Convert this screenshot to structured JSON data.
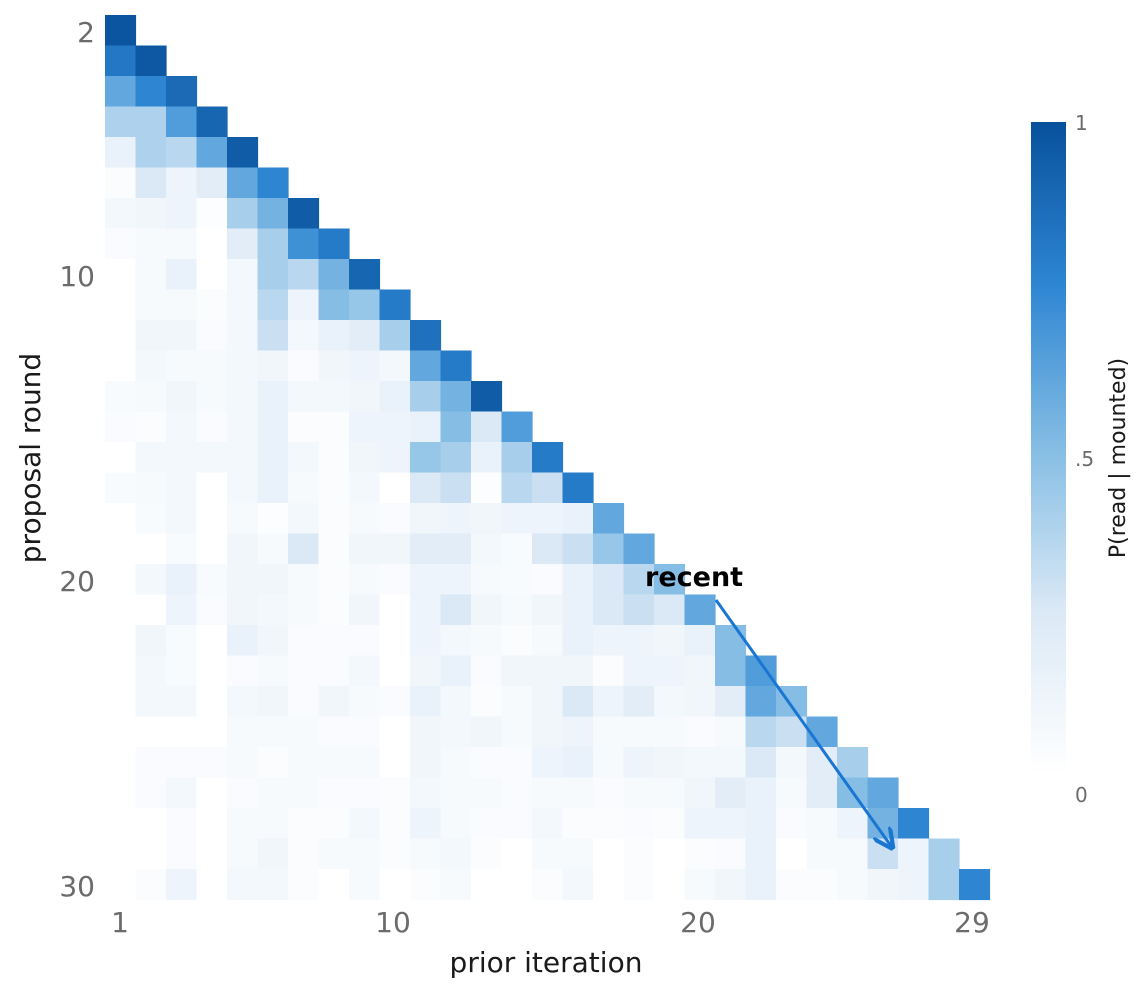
{
  "chart_data": {
    "type": "heatmap",
    "title": "",
    "xlabel": "prior iteration",
    "ylabel": "proposal round",
    "x_range": [
      1,
      29
    ],
    "y_range": [
      2,
      30
    ],
    "x_ticks": [
      "1",
      "10",
      "20",
      "29"
    ],
    "y_ticks": [
      "2",
      "10",
      "20",
      "30"
    ],
    "colorbar": {
      "label": "P(read | mounted)",
      "ticks": [
        "1",
        ".5",
        "0"
      ],
      "range": [
        0,
        1
      ],
      "color_low": "#f7fbff",
      "color_high": "#08519c"
    },
    "annotation": {
      "text": "recent",
      "color": "#1976d2",
      "arrow_from": [
        21,
        20.6
      ],
      "arrow_to": [
        27,
        29.1
      ]
    },
    "rows": [
      {
        "round": 2,
        "values": [
          0.98
        ]
      },
      {
        "round": 3,
        "values": [
          0.82,
          0.97
        ]
      },
      {
        "round": 4,
        "values": [
          0.6,
          0.75,
          0.88
        ]
      },
      {
        "round": 5,
        "values": [
          0.38,
          0.38,
          0.65,
          0.9
        ]
      },
      {
        "round": 6,
        "values": [
          0.15,
          0.38,
          0.35,
          0.6,
          0.95
        ]
      },
      {
        "round": 7,
        "values": [
          0.03,
          0.25,
          0.12,
          0.2,
          0.6,
          0.75
        ]
      },
      {
        "round": 8,
        "values": [
          0.08,
          0.1,
          0.12,
          0.02,
          0.4,
          0.55,
          0.95
        ]
      },
      {
        "round": 9,
        "values": [
          0.04,
          0.06,
          0.06,
          0.0,
          0.2,
          0.4,
          0.7,
          0.8
        ]
      },
      {
        "round": 10,
        "values": [
          0.0,
          0.06,
          0.15,
          0.0,
          0.08,
          0.4,
          0.35,
          0.55,
          0.9
        ]
      },
      {
        "round": 11,
        "values": [
          0.0,
          0.06,
          0.06,
          0.03,
          0.08,
          0.35,
          0.12,
          0.5,
          0.45,
          0.8
        ]
      },
      {
        "round": 12,
        "values": [
          0.0,
          0.1,
          0.1,
          0.04,
          0.08,
          0.3,
          0.08,
          0.15,
          0.2,
          0.4,
          0.85
        ]
      },
      {
        "round": 13,
        "values": [
          0.0,
          0.08,
          0.06,
          0.06,
          0.08,
          0.1,
          0.04,
          0.1,
          0.12,
          0.08,
          0.6,
          0.8
        ]
      },
      {
        "round": 14,
        "values": [
          0.05,
          0.06,
          0.1,
          0.06,
          0.08,
          0.15,
          0.08,
          0.08,
          0.1,
          0.15,
          0.4,
          0.55,
          0.95
        ]
      },
      {
        "round": 15,
        "values": [
          0.04,
          0.03,
          0.08,
          0.04,
          0.08,
          0.15,
          0.03,
          0.03,
          0.12,
          0.12,
          0.15,
          0.5,
          0.25,
          0.65
        ]
      },
      {
        "round": 16,
        "values": [
          0.0,
          0.08,
          0.08,
          0.08,
          0.08,
          0.15,
          0.08,
          0.03,
          0.1,
          0.12,
          0.45,
          0.4,
          0.15,
          0.4,
          0.8
        ]
      },
      {
        "round": 17,
        "values": [
          0.05,
          0.06,
          0.08,
          0.0,
          0.08,
          0.15,
          0.06,
          0.03,
          0.08,
          0.0,
          0.25,
          0.3,
          0.02,
          0.35,
          0.3,
          0.8
        ]
      },
      {
        "round": 18,
        "values": [
          0.0,
          0.05,
          0.08,
          0.0,
          0.06,
          0.02,
          0.08,
          0.03,
          0.06,
          0.04,
          0.1,
          0.12,
          0.1,
          0.12,
          0.12,
          0.15,
          0.6
        ]
      },
      {
        "round": 19,
        "values": [
          0.0,
          0.0,
          0.05,
          0.0,
          0.1,
          0.06,
          0.25,
          0.03,
          0.1,
          0.1,
          0.2,
          0.2,
          0.08,
          0.05,
          0.25,
          0.3,
          0.45,
          0.6
        ]
      },
      {
        "round": 20,
        "values": [
          0.0,
          0.08,
          0.15,
          0.05,
          0.1,
          0.1,
          0.06,
          0.03,
          0.06,
          0.04,
          0.12,
          0.12,
          0.06,
          0.05,
          0.04,
          0.15,
          0.25,
          0.35,
          0.5
        ]
      },
      {
        "round": 21,
        "values": [
          0.0,
          0.0,
          0.12,
          0.04,
          0.1,
          0.08,
          0.06,
          0.03,
          0.1,
          0.0,
          0.12,
          0.25,
          0.1,
          0.06,
          0.1,
          0.15,
          0.25,
          0.3,
          0.25,
          0.6
        ]
      },
      {
        "round": 22,
        "values": [
          0.0,
          0.1,
          0.05,
          0.0,
          0.15,
          0.1,
          0.04,
          0.04,
          0.04,
          0.0,
          0.12,
          0.08,
          0.06,
          0.03,
          0.06,
          0.15,
          0.12,
          0.12,
          0.1,
          0.15,
          0.5
        ]
      },
      {
        "round": 23,
        "values": [
          0.0,
          0.08,
          0.05,
          0.0,
          0.04,
          0.06,
          0.04,
          0.04,
          0.08,
          0.0,
          0.1,
          0.15,
          0.04,
          0.1,
          0.1,
          0.1,
          0.03,
          0.12,
          0.12,
          0.1,
          0.5,
          0.65
        ]
      },
      {
        "round": 24,
        "values": [
          0.0,
          0.08,
          0.08,
          0.0,
          0.08,
          0.1,
          0.04,
          0.1,
          0.06,
          0.04,
          0.15,
          0.08,
          0.03,
          0.06,
          0.1,
          0.25,
          0.12,
          0.2,
          0.08,
          0.1,
          0.2,
          0.6,
          0.5
        ]
      },
      {
        "round": 25,
        "values": [
          0.0,
          0.0,
          0.0,
          0.0,
          0.06,
          0.06,
          0.06,
          0.04,
          0.04,
          0.0,
          0.1,
          0.08,
          0.1,
          0.06,
          0.1,
          0.12,
          0.06,
          0.06,
          0.06,
          0.04,
          0.06,
          0.35,
          0.3,
          0.6
        ]
      },
      {
        "round": 26,
        "values": [
          0.0,
          0.04,
          0.04,
          0.04,
          0.06,
          0.03,
          0.06,
          0.06,
          0.06,
          0.0,
          0.1,
          0.06,
          0.04,
          0.04,
          0.12,
          0.15,
          0.06,
          0.12,
          0.1,
          0.08,
          0.08,
          0.25,
          0.08,
          0.2,
          0.4
        ]
      },
      {
        "round": 27,
        "values": [
          0.0,
          0.04,
          0.08,
          0.0,
          0.04,
          0.06,
          0.06,
          0.04,
          0.04,
          0.03,
          0.08,
          0.06,
          0.06,
          0.04,
          0.06,
          0.06,
          0.04,
          0.06,
          0.06,
          0.1,
          0.2,
          0.15,
          0.06,
          0.2,
          0.5,
          0.6
        ]
      },
      {
        "round": 28,
        "values": [
          0.0,
          0.0,
          0.04,
          0.0,
          0.06,
          0.06,
          0.03,
          0.03,
          0.08,
          0.03,
          0.12,
          0.06,
          0.04,
          0.04,
          0.08,
          0.03,
          0.03,
          0.04,
          0.03,
          0.12,
          0.12,
          0.15,
          0.04,
          0.06,
          0.12,
          0.55,
          0.75
        ]
      },
      {
        "round": 29,
        "values": [
          0.0,
          0.0,
          0.04,
          0.0,
          0.06,
          0.1,
          0.03,
          0.06,
          0.06,
          0.03,
          0.06,
          0.08,
          0.03,
          0.0,
          0.06,
          0.06,
          0.0,
          0.03,
          0.0,
          0.03,
          0.04,
          0.15,
          0.0,
          0.06,
          0.06,
          0.3,
          0.12,
          0.4
        ]
      },
      {
        "round": 30,
        "values": [
          0.0,
          0.03,
          0.12,
          0.0,
          0.08,
          0.08,
          0.03,
          0.0,
          0.06,
          0.0,
          0.03,
          0.06,
          0.0,
          0.0,
          0.03,
          0.08,
          0.0,
          0.03,
          0.0,
          0.06,
          0.1,
          0.15,
          0.03,
          0.03,
          0.06,
          0.1,
          0.12,
          0.4,
          0.75
        ]
      }
    ]
  }
}
